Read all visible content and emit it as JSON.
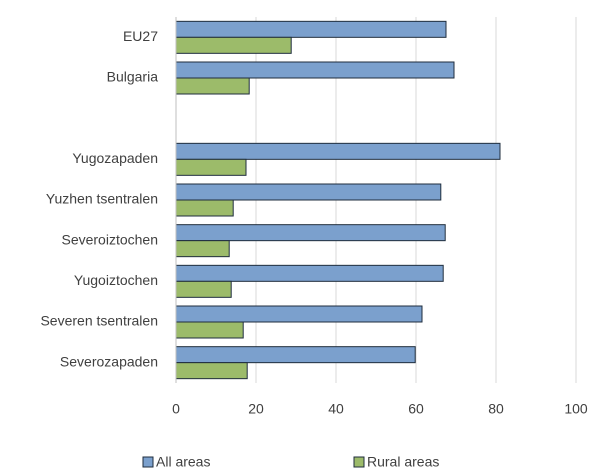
{
  "chart_data": {
    "type": "bar",
    "orientation": "horizontal",
    "categories": [
      "EU27",
      "Bulgaria",
      null,
      "Yugozapaden",
      "Yuzhen tsentralen",
      "Severoiztochen",
      "Yugoiztochen",
      "Severen tsentralen",
      "Severozapaden"
    ],
    "series": [
      {
        "name": "All areas",
        "color": "#7ba0cd",
        "values": [
          67.5,
          69.5,
          null,
          81,
          66.2,
          67.3,
          66.8,
          61.5,
          59.8
        ]
      },
      {
        "name": "Rural areas",
        "color": "#9cbb6a",
        "values": [
          28.8,
          18.3,
          null,
          17.5,
          14.3,
          13.3,
          13.8,
          16.8,
          17.8
        ]
      }
    ],
    "xlim": [
      0,
      100
    ],
    "xticks": [
      0,
      20,
      40,
      60,
      80,
      100
    ],
    "grid": true,
    "legend": "bottom"
  }
}
